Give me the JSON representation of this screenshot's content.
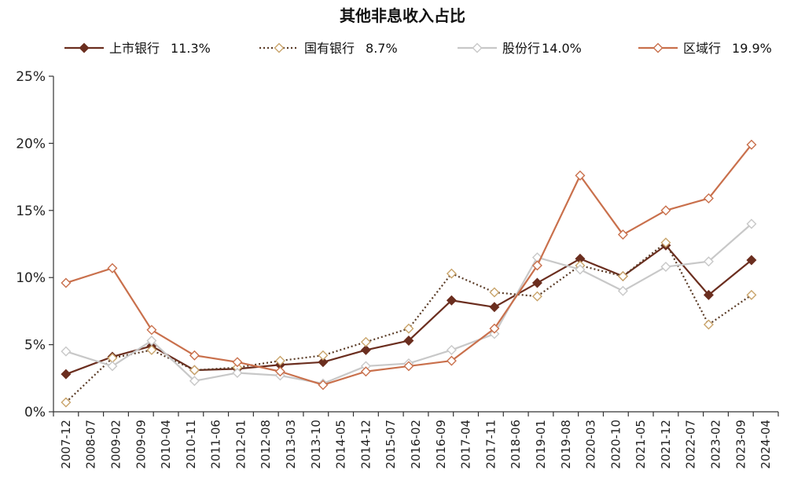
{
  "chart_data": {
    "type": "line",
    "title": "其他非息收入占比",
    "x_ticks": [
      "2007-12",
      "2008-07",
      "2009-02",
      "2009-09",
      "2010-04",
      "2010-11",
      "2011-06",
      "2012-01",
      "2012-08",
      "2013-03",
      "2013-10",
      "2014-05",
      "2014-12",
      "2015-07",
      "2016-02",
      "2016-09",
      "2017-04",
      "2017-11",
      "2018-06",
      "2019-01",
      "2019-08",
      "2020-03",
      "2020-10",
      "2021-05",
      "2021-12",
      "2022-07",
      "2023-02",
      "2023-09",
      "2024-04"
    ],
    "x_points": [
      "2007-12",
      "2009-01",
      "2009-12",
      "2010-12",
      "2011-12",
      "2012-12",
      "2013-12",
      "2014-12",
      "2015-12",
      "2016-12",
      "2017-12",
      "2018-12",
      "2019-12",
      "2020-12",
      "2021-12",
      "2022-12",
      "2023-12"
    ],
    "y_ticks": [
      "0%",
      "5%",
      "10%",
      "15%",
      "20%",
      "25%"
    ],
    "ylim": [
      0,
      25
    ],
    "series": [
      {
        "name": "上市银行",
        "legend_value": "11.3%",
        "color": "#6b2e1f",
        "dash": "",
        "marker": "diamond-filled",
        "values": [
          2.8,
          4.1,
          4.9,
          3.1,
          3.2,
          3.5,
          3.7,
          4.6,
          5.3,
          8.3,
          7.8,
          9.6,
          11.4,
          10.1,
          12.4,
          8.7,
          11.3
        ]
      },
      {
        "name": "国有银行",
        "legend_value": "8.7%",
        "color": "#5a3b26",
        "dash": "2,3",
        "marker": "diamond-open-tan",
        "values": [
          0.7,
          4.0,
          4.6,
          3.1,
          3.3,
          3.8,
          4.2,
          5.2,
          6.2,
          10.3,
          8.9,
          8.6,
          10.9,
          10.1,
          12.6,
          6.5,
          8.7
        ]
      },
      {
        "name": "股份行",
        "legend_value": "14.0%",
        "color": "#c8c8c8",
        "dash": "",
        "marker": "diamond-open-grey",
        "values": [
          4.5,
          3.4,
          5.3,
          2.3,
          2.9,
          2.7,
          2.1,
          3.4,
          3.6,
          4.6,
          5.8,
          11.5,
          10.6,
          9.0,
          10.8,
          11.2,
          14.0
        ]
      },
      {
        "name": "区域行",
        "legend_value": "19.9%",
        "color": "#c9704c",
        "dash": "",
        "marker": "diamond-open-orange",
        "values": [
          9.6,
          10.7,
          6.1,
          4.2,
          3.7,
          3.0,
          2.0,
          3.0,
          3.4,
          3.8,
          6.2,
          10.9,
          17.6,
          13.2,
          15.0,
          15.9,
          19.9
        ]
      }
    ]
  }
}
